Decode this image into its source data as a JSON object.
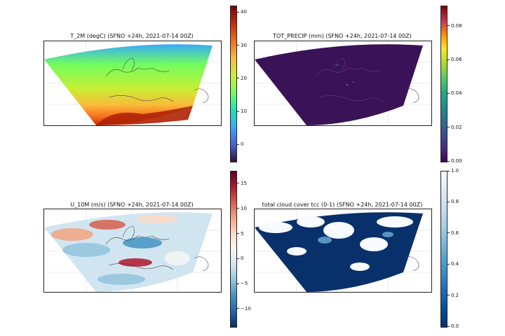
{
  "panels": [
    {
      "title": "T_2M (degC)  (SFNO +24h, 2021-07-14 00Z)",
      "colorbar": {
        "colors": [
          "#30123b",
          "#4662d7",
          "#36aaf9",
          "#1ae4b6",
          "#72fe5e",
          "#c8ef34",
          "#faba39",
          "#f66b19",
          "#ca2a04",
          "#7a0403"
        ],
        "min": -5,
        "max": 42,
        "ticks": [
          {
            "v": 40,
            "label": "40"
          },
          {
            "v": 30,
            "label": "30"
          },
          {
            "v": 20,
            "label": "20"
          },
          {
            "v": 10,
            "label": "10"
          },
          {
            "v": 0,
            "label": "0"
          }
        ]
      }
    },
    {
      "title": "TOT_PRECIP (mm)  (SFNO +24h, 2021-07-14 00Z)",
      "colorbar": {
        "colors": [
          "#440154",
          "#472d7b",
          "#3b528b",
          "#2c728e",
          "#21918c",
          "#28ae80",
          "#5ec962",
          "#addc30",
          "#fde725",
          "#f98e09",
          "#bc3754",
          "#7a0403"
        ],
        "min": 0,
        "max": 0.092,
        "ticks": [
          {
            "v": 0.08,
            "label": "0.08"
          },
          {
            "v": 0.06,
            "label": "0.06"
          },
          {
            "v": 0.04,
            "label": "0.04"
          },
          {
            "v": 0.02,
            "label": "0.02"
          },
          {
            "v": 0,
            "label": "0.00"
          }
        ]
      }
    },
    {
      "title": "U_10M (m/s)  (SFNO +24h, 2021-07-14 00Z)",
      "colorbar": {
        "colors": [
          "#053061",
          "#2166ac",
          "#4393c3",
          "#92c5de",
          "#d1e5f0",
          "#f7f7f7",
          "#fddbc7",
          "#f4a582",
          "#d6604d",
          "#b2182b",
          "#67001f"
        ],
        "min": -13.5,
        "max": 17.5,
        "ticks": [
          {
            "v": 15,
            "label": "15"
          },
          {
            "v": 10,
            "label": "10"
          },
          {
            "v": 5,
            "label": "5"
          },
          {
            "v": 0,
            "label": "0"
          },
          {
            "v": -5,
            "label": "−5"
          },
          {
            "v": -10,
            "label": "−10"
          }
        ]
      }
    },
    {
      "title": "total cloud cover tcc (0-1)  (SFNO +24h, 2021-07-14 00Z)",
      "colorbar": {
        "colors": [
          "#08306b",
          "#08519c",
          "#2171b5",
          "#4292c6",
          "#6baed6",
          "#9ecae1",
          "#c6dbef",
          "#deebf7",
          "#f7fbff"
        ],
        "min": 0,
        "max": 1,
        "ticks": [
          {
            "v": 1,
            "label": "1.0"
          },
          {
            "v": 0.8,
            "label": "0.8"
          },
          {
            "v": 0.6,
            "label": "0.6"
          },
          {
            "v": 0.4,
            "label": "0.4"
          },
          {
            "v": 0.2,
            "label": "0.2"
          },
          {
            "v": 0,
            "label": "0.0"
          }
        ]
      }
    }
  ]
}
